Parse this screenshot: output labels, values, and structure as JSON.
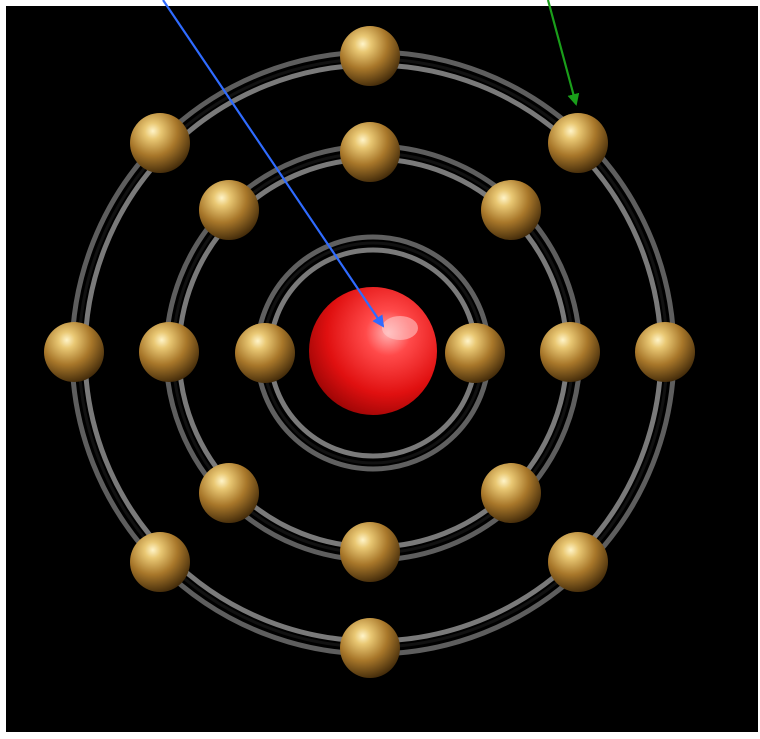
{
  "diagram": {
    "background_color": "#000000",
    "nucleus": {
      "color": "#e01010",
      "highlight": "#ff9a9a"
    },
    "electron": {
      "color": "#b8862b",
      "highlight": "#fff2c0",
      "shadow": "#4a300a"
    },
    "shells": [
      {
        "shell": 1,
        "electron_count": 2
      },
      {
        "shell": 2,
        "electron_count": 8
      },
      {
        "shell": 3,
        "electron_count": 8
      }
    ],
    "arrows": [
      {
        "name": "nucleus-pointer",
        "color": "#2f6bff"
      },
      {
        "name": "electron-pointer",
        "color": "#1a9e1a"
      }
    ]
  }
}
